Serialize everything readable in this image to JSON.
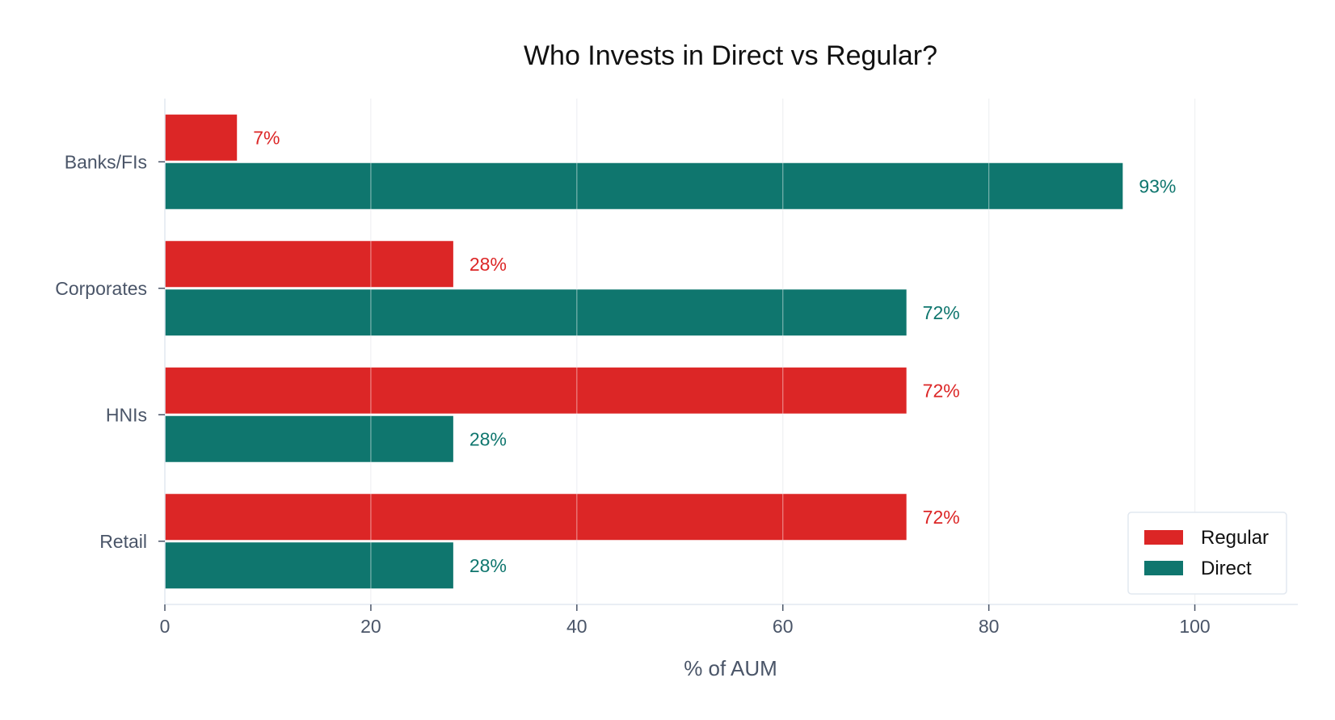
{
  "chart_data": {
    "type": "bar",
    "orientation": "horizontal",
    "title": "Who Invests in Direct vs Regular?",
    "xlabel": "% of AUM",
    "ylabel": "",
    "xlim": [
      0,
      110
    ],
    "xticks": [
      0,
      20,
      40,
      60,
      80,
      100
    ],
    "grid": true,
    "categories": [
      "Banks/FIs",
      "Corporates",
      "HNIs",
      "Retail"
    ],
    "series": [
      {
        "name": "Regular",
        "color": "#dc2626",
        "values": [
          7,
          28,
          72,
          72
        ],
        "labels": [
          "7%",
          "28%",
          "72%",
          "72%"
        ]
      },
      {
        "name": "Direct",
        "color": "#0f766e",
        "values": [
          93,
          72,
          28,
          28
        ],
        "labels": [
          "93%",
          "72%",
          "28%",
          "28%"
        ]
      }
    ],
    "legend": {
      "position": "bottom-right"
    }
  }
}
